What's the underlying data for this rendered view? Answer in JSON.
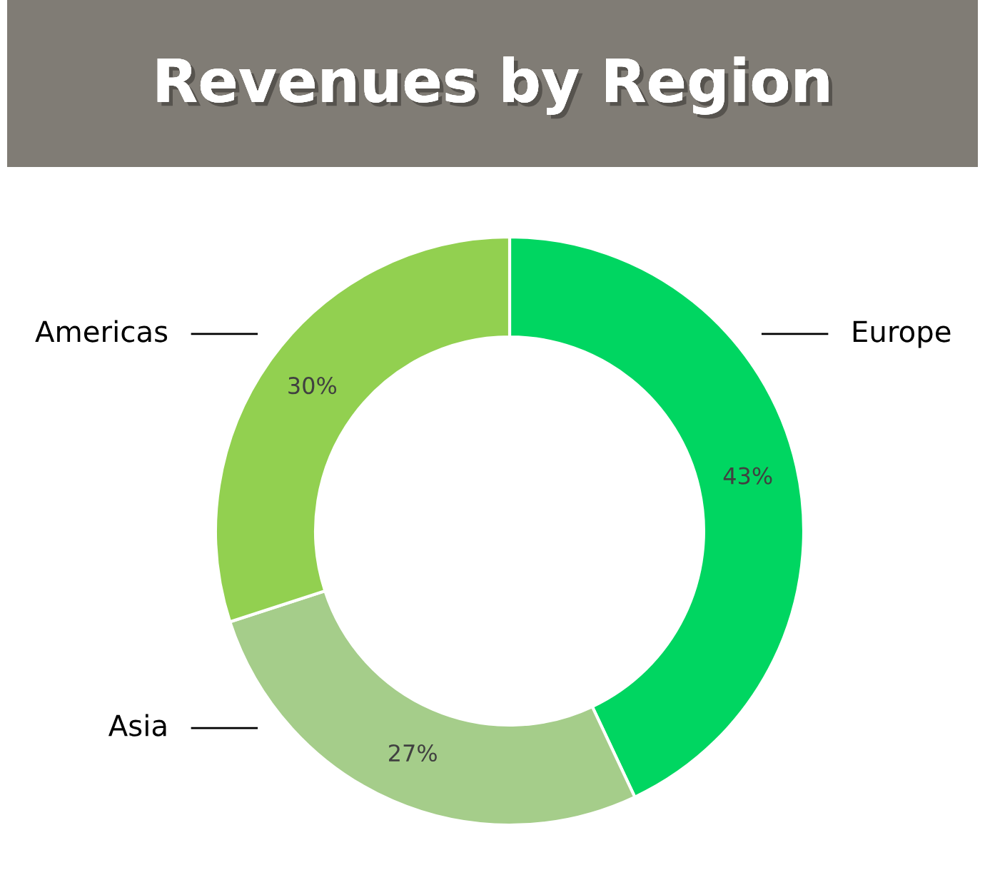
{
  "chart_data": {
    "type": "donut",
    "title": "Revenues by Region",
    "categories": [
      "Europe",
      "Asia",
      "Americas"
    ],
    "values": [
      43,
      27,
      30
    ],
    "colors": [
      "#00d661",
      "#a5cd8a",
      "#92d050"
    ],
    "value_labels": [
      "43%",
      "27%",
      "30%"
    ]
  }
}
